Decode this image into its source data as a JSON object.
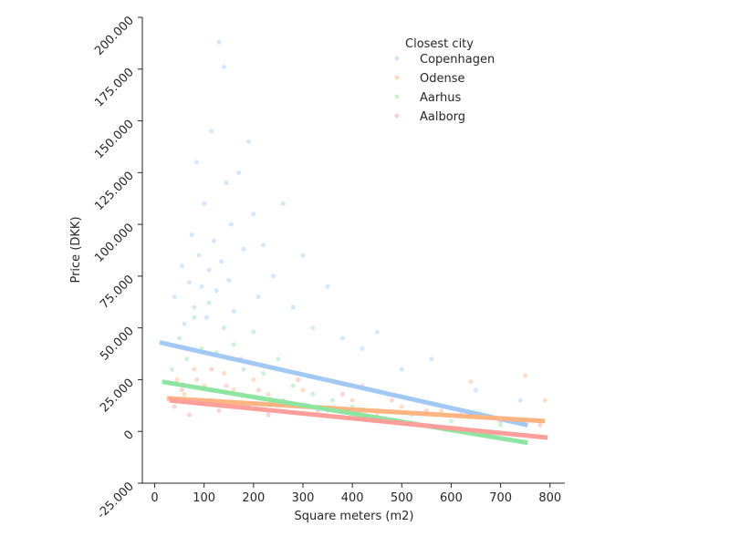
{
  "chart_data": {
    "type": "scatter",
    "xlabel": "Square meters (m2)",
    "ylabel": "Price (DKK)",
    "xlim": [
      -25,
      830
    ],
    "ylim": [
      -25000,
      200000
    ],
    "xticks": [
      0,
      100,
      200,
      300,
      400,
      500,
      600,
      700,
      800
    ],
    "xtick_labels": [
      "0",
      "100",
      "200",
      "300",
      "400",
      "500",
      "600",
      "700",
      "800"
    ],
    "yticks": [
      -25000,
      0,
      25000,
      50000,
      75000,
      100000,
      125000,
      150000,
      175000,
      200000
    ],
    "ytick_labels": [
      "-25.000",
      "0",
      "25.000",
      "50.000",
      "75.000",
      "100.000",
      "125.000",
      "150.000",
      "175.000",
      "200.000"
    ],
    "grid": false,
    "legend": {
      "title": "Closest city",
      "placement": "top-right",
      "entries": [
        "Copenhagen",
        "Odense",
        "Aarhus",
        "Aalborg"
      ]
    },
    "series": [
      {
        "name": "Copenhagen",
        "color": "#a1c9f4",
        "points": [
          [
            40,
            65000
          ],
          [
            55,
            80000
          ],
          [
            60,
            52000
          ],
          [
            70,
            72000
          ],
          [
            75,
            95000
          ],
          [
            80,
            60000
          ],
          [
            85,
            130000
          ],
          [
            90,
            85000
          ],
          [
            95,
            70000
          ],
          [
            100,
            110000
          ],
          [
            105,
            55000
          ],
          [
            110,
            78000
          ],
          [
            115,
            145000
          ],
          [
            120,
            92000
          ],
          [
            125,
            68000
          ],
          [
            130,
            188000
          ],
          [
            135,
            82000
          ],
          [
            140,
            176000
          ],
          [
            145,
            120000
          ],
          [
            150,
            73000
          ],
          [
            155,
            100000
          ],
          [
            160,
            58000
          ],
          [
            170,
            125000
          ],
          [
            180,
            88000
          ],
          [
            190,
            140000
          ],
          [
            200,
            105000
          ],
          [
            210,
            65000
          ],
          [
            220,
            90000
          ],
          [
            240,
            75000
          ],
          [
            260,
            110000
          ],
          [
            280,
            60000
          ],
          [
            300,
            85000
          ],
          [
            320,
            50000
          ],
          [
            350,
            70000
          ],
          [
            380,
            45000
          ],
          [
            420,
            40000
          ],
          [
            450,
            48000
          ],
          [
            500,
            30000
          ],
          [
            560,
            35000
          ],
          [
            650,
            20000
          ],
          [
            740,
            15000
          ]
        ],
        "trend": [
          [
            10,
            43000
          ],
          [
            755,
            3000
          ]
        ]
      },
      {
        "name": "Odense",
        "color": "#ffb482",
        "points": [
          [
            45,
            25000
          ],
          [
            60,
            18000
          ],
          [
            80,
            30000
          ],
          [
            100,
            22000
          ],
          [
            120,
            15000
          ],
          [
            140,
            28000
          ],
          [
            160,
            20000
          ],
          [
            180,
            12000
          ],
          [
            200,
            25000
          ],
          [
            230,
            18000
          ],
          [
            260,
            14000
          ],
          [
            300,
            20000
          ],
          [
            350,
            10000
          ],
          [
            400,
            15000
          ],
          [
            450,
            8000
          ],
          [
            500,
            12000
          ],
          [
            580,
            10000
          ],
          [
            640,
            24000
          ],
          [
            750,
            27000
          ],
          [
            790,
            15000
          ]
        ],
        "trend": [
          [
            25,
            16000
          ],
          [
            790,
            5000
          ]
        ]
      },
      {
        "name": "Aarhus",
        "color": "#8de5a1",
        "points": [
          [
            35,
            30000
          ],
          [
            50,
            45000
          ],
          [
            65,
            35000
          ],
          [
            80,
            55000
          ],
          [
            95,
            40000
          ],
          [
            110,
            62000
          ],
          [
            125,
            38000
          ],
          [
            140,
            50000
          ],
          [
            160,
            42000
          ],
          [
            180,
            30000
          ],
          [
            200,
            48000
          ],
          [
            220,
            28000
          ],
          [
            250,
            35000
          ],
          [
            280,
            22000
          ],
          [
            320,
            18000
          ],
          [
            360,
            15000
          ],
          [
            400,
            12000
          ],
          [
            450,
            10000
          ],
          [
            520,
            8000
          ],
          [
            600,
            5000
          ],
          [
            700,
            3000
          ]
        ],
        "trend": [
          [
            15,
            24000
          ],
          [
            755,
            -5500
          ]
        ]
      },
      {
        "name": "Aalborg",
        "color": "#ff9f9b",
        "points": [
          [
            40,
            12000
          ],
          [
            55,
            20000
          ],
          [
            70,
            8000
          ],
          [
            85,
            25000
          ],
          [
            100,
            15000
          ],
          [
            115,
            30000
          ],
          [
            130,
            10000
          ],
          [
            145,
            22000
          ],
          [
            160,
            18000
          ],
          [
            175,
            35000
          ],
          [
            190,
            12000
          ],
          [
            210,
            20000
          ],
          [
            230,
            8000
          ],
          [
            260,
            15000
          ],
          [
            290,
            25000
          ],
          [
            330,
            10000
          ],
          [
            380,
            18000
          ],
          [
            420,
            22000
          ],
          [
            480,
            15000
          ],
          [
            550,
            10000
          ],
          [
            620,
            8000
          ],
          [
            700,
            5000
          ],
          [
            780,
            3000
          ]
        ],
        "trend": [
          [
            30,
            15000
          ],
          [
            795,
            -3000
          ]
        ]
      }
    ]
  }
}
